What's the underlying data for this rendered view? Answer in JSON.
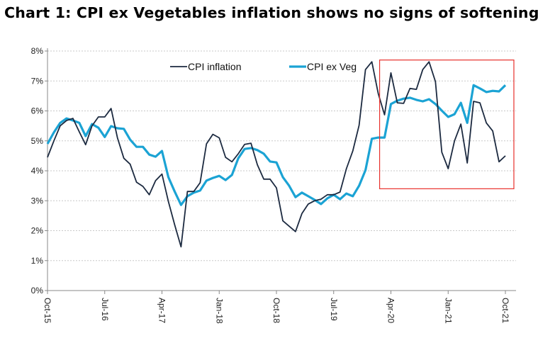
{
  "chart_data": {
    "type": "line",
    "title": "Chart 1:  CPI ex Vegetables inflation shows no signs of softening",
    "xlabel": "",
    "ylabel": "",
    "x_start": "Oct-15",
    "x_end": "Oct-21",
    "x_frequency": "monthly",
    "x_tick_labels": [
      "Oct-15",
      "Jul-16",
      "Apr-17",
      "Jan-18",
      "Oct-18",
      "Jul-19",
      "Apr-20",
      "Jan-21",
      "Oct-21"
    ],
    "y_tick_labels": [
      "0%",
      "1%",
      "2%",
      "3%",
      "4%",
      "5%",
      "6%",
      "7%",
      "8%"
    ],
    "ylim": [
      0,
      8
    ],
    "grid": "horizontal dotted",
    "legend_placement": "top-center",
    "series": [
      {
        "name": "CPI inflation",
        "color": "#1c2a40",
        "values": [
          4.45,
          5.0,
          5.5,
          5.68,
          5.75,
          5.3,
          4.87,
          5.5,
          5.8,
          5.8,
          6.08,
          5.1,
          4.42,
          4.22,
          3.62,
          3.48,
          3.2,
          3.67,
          3.89,
          2.98,
          2.2,
          1.46,
          3.31,
          3.31,
          3.6,
          4.9,
          5.22,
          5.1,
          4.45,
          4.3,
          4.57,
          4.88,
          4.92,
          4.2,
          3.72,
          3.72,
          3.43,
          2.33,
          2.15,
          1.97,
          2.57,
          2.89,
          3.0,
          3.05,
          3.2,
          3.2,
          3.29,
          4.07,
          4.66,
          5.52,
          7.38,
          7.64,
          6.58,
          5.87,
          7.27,
          6.27,
          6.25,
          6.75,
          6.72,
          7.38,
          7.64,
          6.98,
          4.62,
          4.07,
          5.0,
          5.56,
          4.26,
          6.32,
          6.27,
          5.6,
          5.33,
          4.3,
          4.5
        ]
      },
      {
        "name": "CPI ex Veg",
        "color": "#1ba3d4",
        "values": [
          4.9,
          5.28,
          5.6,
          5.75,
          5.68,
          5.6,
          5.16,
          5.56,
          5.44,
          5.13,
          5.49,
          5.42,
          5.4,
          5.04,
          4.8,
          4.8,
          4.54,
          4.47,
          4.66,
          3.79,
          3.31,
          2.86,
          3.15,
          3.27,
          3.34,
          3.67,
          3.76,
          3.83,
          3.69,
          3.86,
          4.42,
          4.73,
          4.76,
          4.69,
          4.57,
          4.31,
          4.28,
          3.79,
          3.5,
          3.12,
          3.27,
          3.15,
          3.03,
          2.89,
          3.08,
          3.2,
          3.05,
          3.24,
          3.15,
          3.5,
          4.02,
          5.07,
          5.11,
          5.11,
          6.23,
          6.34,
          6.41,
          6.44,
          6.37,
          6.32,
          6.39,
          6.23,
          6.01,
          5.8,
          5.89,
          6.27,
          5.6,
          6.86,
          6.75,
          6.63,
          6.67,
          6.65,
          6.86
        ]
      }
    ],
    "highlight_box": {
      "color": "#e8302c",
      "x_from": "Feb-20",
      "x_to": "Nov-21",
      "y_range": [
        3.4,
        7.7
      ]
    }
  }
}
